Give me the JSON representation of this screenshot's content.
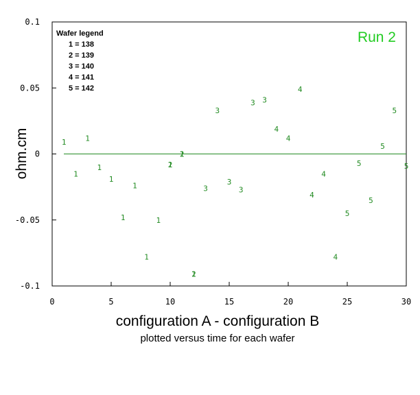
{
  "chart_data": {
    "type": "scatter",
    "title": "Run 2",
    "xlabel": "configuration A - configuration B",
    "subtitle": "plotted versus time for each wafer",
    "ylabel": "ohm.cm",
    "xlim": [
      0,
      30
    ],
    "ylim": [
      -0.1,
      0.1
    ],
    "x_ticks": [
      "0",
      "5",
      "10",
      "15",
      "20",
      "25",
      "30"
    ],
    "y_ticks": [
      "0.1",
      "0.05",
      "0",
      "-0.05",
      "-0.1"
    ],
    "reference_line_y": 0,
    "legend": {
      "title": "Wafer legend",
      "entries": [
        "1 = 138",
        "2 = 139",
        "3 = 140",
        "4 = 141",
        "5 = 142"
      ]
    },
    "series": [
      {
        "label": "1",
        "x": [
          1,
          2,
          3,
          4,
          5,
          6,
          7,
          8,
          9,
          10,
          11,
          12
        ],
        "y": [
          0.009,
          -0.015,
          0.012,
          -0.01,
          -0.019,
          -0.048,
          -0.024,
          -0.078,
          -0.05,
          -0.008,
          0.0,
          -0.091
        ]
      },
      {
        "label": "2",
        "x": [
          10,
          11,
          12
        ],
        "y": [
          -0.008,
          0.0,
          -0.091
        ]
      },
      {
        "label": "3",
        "x": [
          13,
          14,
          15,
          16,
          17,
          18
        ],
        "y": [
          -0.026,
          0.033,
          -0.021,
          -0.027,
          0.039,
          0.041
        ]
      },
      {
        "label": "4",
        "x": [
          19,
          20,
          21,
          22,
          23,
          24
        ],
        "y": [
          0.019,
          0.012,
          0.049,
          -0.031,
          -0.015,
          -0.078
        ]
      },
      {
        "label": "5",
        "x": [
          25,
          26,
          27,
          28,
          29,
          30
        ],
        "y": [
          -0.045,
          -0.007,
          -0.035,
          0.006,
          0.033,
          -0.009
        ]
      }
    ]
  }
}
